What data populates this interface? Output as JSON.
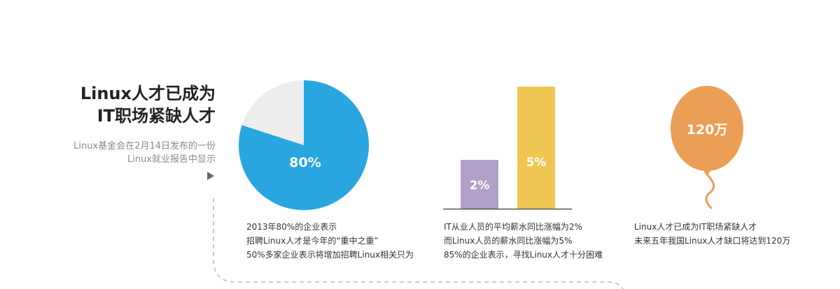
{
  "headline": {
    "line1": "Linux人才已成为",
    "line2": "IT职场紧缺人才"
  },
  "subtitle": {
    "line1": "Linux基金会在2月14日发布的一份",
    "line2": "Linux就业报告中显示"
  },
  "colors": {
    "pie_main": "#29a6e0",
    "pie_rest": "#ededed",
    "bar_it": "#b1a0c7",
    "bar_linux": "#efc652",
    "balloon": "#eb9e56",
    "dashed_line": "#c8c8c8"
  },
  "chart_data": [
    {
      "type": "pie",
      "values": [
        80,
        20
      ],
      "label": "80%"
    },
    {
      "type": "bar",
      "values": [
        2,
        5
      ],
      "labels": [
        "2%",
        "5%"
      ]
    }
  ],
  "balloon": {
    "label": "120万"
  },
  "pie_caption": {
    "line1": "2013年80%的企业表示",
    "line2": "招聘Linux人才是今年的“重中之重”",
    "line3": "50%多家企业表示将增加招聘Linux相关只为"
  },
  "bar_caption": {
    "line1": "IT从业人员的平均薪水同比涨幅为2%",
    "line2": "而Linux人员的薪水同比涨幅为5%",
    "line3": "85%的企业表示，寻找Linux人才十分困难"
  },
  "balloon_caption": {
    "line1": "Linux人才已成为IT职场紧缺人才",
    "line2": "未来五年我国Linux人才缺口将达到120万"
  }
}
